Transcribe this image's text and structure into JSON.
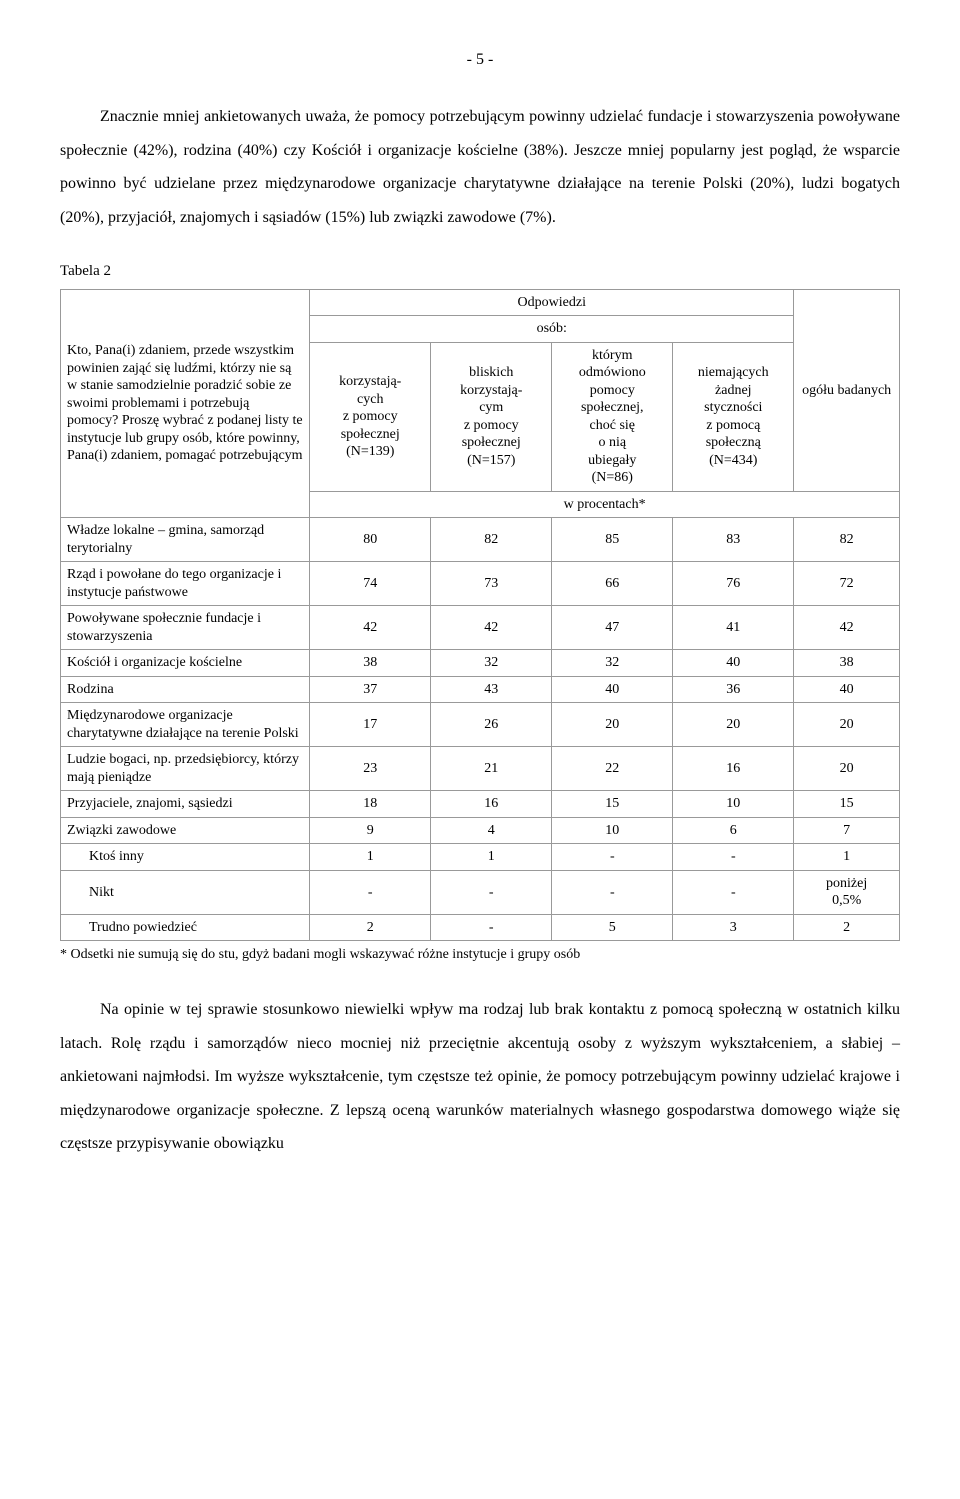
{
  "page_number": "- 5 -",
  "para1": "Znacznie mniej ankietowanych uważa, że pomocy potrzebującym powinny udzielać fundacje i stowarzyszenia powoływane społecznie (42%), rodzina (40%) czy Kościół i organizacje kościelne (38%). Jeszcze mniej popularny jest pogląd, że wsparcie powinno być udzielane przez międzynarodowe organizacje charytatywne działające na terenie Polski (20%), ludzi bogatych (20%), przyjaciół, znajomych i sąsiadów (15%) lub związki zawodowe (7%).",
  "table": {
    "label": "Tabela 2",
    "question": "Kto, Pana(i) zdaniem, przede wszystkim powinien zająć się ludźmi, którzy nie są w stanie samodzielnie poradzić sobie ze swoimi problemami i potrzebują pomocy? Proszę wybrać z podanej listy te instytucje lub grupy osób, które powinny, Pana(i) zdaniem, pomagać potrzebującym",
    "head_top": "Odpowiedzi",
    "head_osob": "osób:",
    "head_ogolu": "ogółu badanych",
    "head_procent": "w procentach*",
    "cols": [
      "korzystają-\ncych\nz pomocy\nspołecznej\n(N=139)",
      "bliskich\nkorzystają-\ncym\nz pomocy\nspołecznej\n(N=157)",
      "którym\nodmówiono\npomocy\nspołecznej,\nchoć się\no nią\nubiegały\n(N=86)",
      "niemających\nżadnej\nstyczności\nz pomocą\nspołeczną\n(N=434)"
    ],
    "rows": [
      {
        "label": "Władze lokalne – gmina, samorząd terytorialny",
        "v": [
          "80",
          "82",
          "85",
          "83",
          "82"
        ]
      },
      {
        "label": "Rząd i powołane do tego organizacje i instytucje państwowe",
        "v": [
          "74",
          "73",
          "66",
          "76",
          "72"
        ]
      },
      {
        "label": "Powoływane społecznie fundacje i stowarzyszenia",
        "v": [
          "42",
          "42",
          "47",
          "41",
          "42"
        ]
      },
      {
        "label": "Kościół i organizacje kościelne",
        "v": [
          "38",
          "32",
          "32",
          "40",
          "38"
        ]
      },
      {
        "label": "Rodzina",
        "v": [
          "37",
          "43",
          "40",
          "36",
          "40"
        ]
      },
      {
        "label": "Międzynarodowe organizacje charytatywne działające na terenie Polski",
        "v": [
          "17",
          "26",
          "20",
          "20",
          "20"
        ]
      },
      {
        "label": "Ludzie bogaci, np. przedsiębiorcy, którzy mają pieniądze",
        "v": [
          "23",
          "21",
          "22",
          "16",
          "20"
        ]
      },
      {
        "label": "Przyjaciele, znajomi, sąsiedzi",
        "v": [
          "18",
          "16",
          "15",
          "10",
          "15"
        ]
      },
      {
        "label": "Związki zawodowe",
        "v": [
          "9",
          "4",
          "10",
          "6",
          "7"
        ]
      },
      {
        "label": "Ktoś inny",
        "indent": true,
        "v": [
          "1",
          "1",
          "-",
          "-",
          "1"
        ]
      },
      {
        "label": "Nikt",
        "indent": true,
        "v": [
          "-",
          "-",
          "-",
          "-",
          "poniżej\n0,5%"
        ]
      },
      {
        "label": "Trudno powiedzieć",
        "indent": true,
        "v": [
          "2",
          "-",
          "5",
          "3",
          "2"
        ]
      }
    ],
    "footnote": "* Odsetki nie sumują się do stu, gdyż badani mogli wskazywać różne instytucje i grupy osób"
  },
  "para2": "Na opinie w tej sprawie stosunkowo niewielki wpływ ma rodzaj lub brak kontaktu z pomocą społeczną w ostatnich kilku latach. Rolę rządu i samorządów nieco mocniej niż przeciętnie akcentują osoby z wyższym wykształceniem, a słabiej – ankietowani najmłodsi. Im wyższe wykształcenie, tym częstsze też opinie, że pomocy potrzebującym powinny udzielać krajowe i międzynarodowe organizacje społeczne. Z lepszą oceną warunków materialnych własnego gospodarstwa domowego wiąże się częstsze przypisywanie obowiązku"
}
